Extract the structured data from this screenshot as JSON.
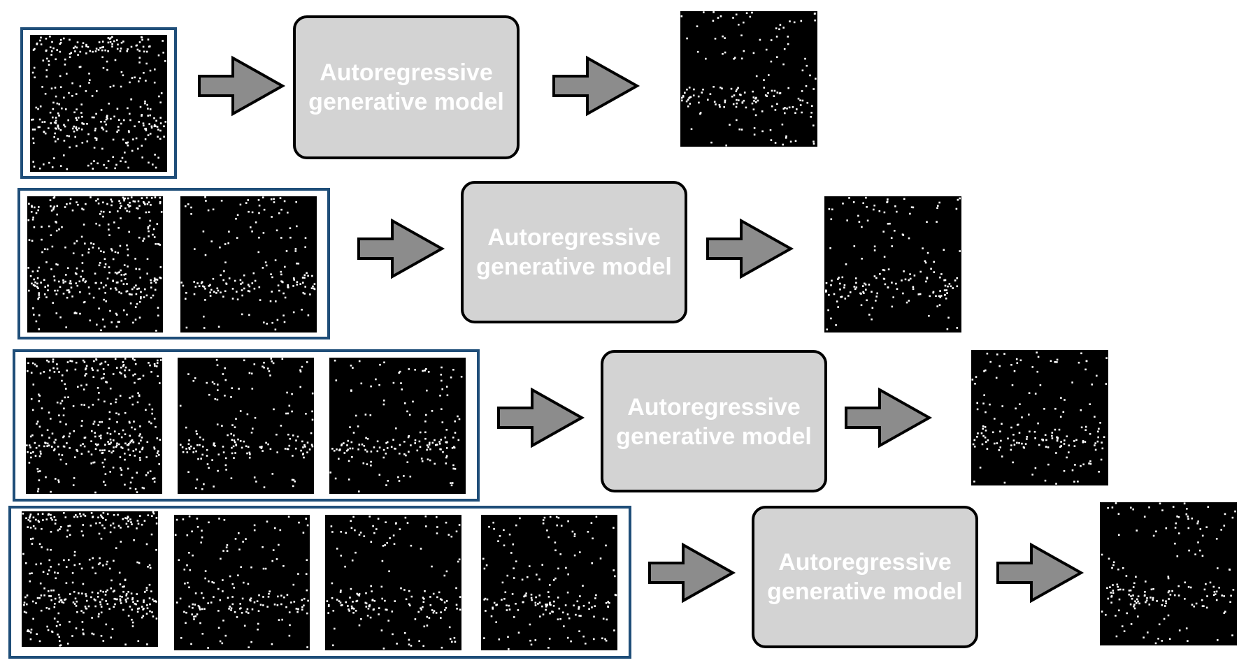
{
  "rows": [
    {
      "context_frames": 1,
      "model_label": [
        "Autoregressive",
        "generative model"
      ]
    },
    {
      "context_frames": 2,
      "model_label": [
        "Autoregressive",
        "generative model"
      ]
    },
    {
      "context_frames": 3,
      "model_label": [
        "Autoregressive",
        "generative model"
      ]
    },
    {
      "context_frames": 4,
      "model_label": [
        "Autoregressive",
        "generative model"
      ]
    }
  ],
  "colors": {
    "frame_border": "#1f4e79",
    "model_fill": "#d3d3d3",
    "model_text": "#ffffff",
    "arrow_fill": "#8c8c8c",
    "raster_bg": "#000000",
    "raster_dots": "#ffffff"
  },
  "icons": {
    "arrow": "right-arrow-icon",
    "raster": "spike-raster-image"
  }
}
